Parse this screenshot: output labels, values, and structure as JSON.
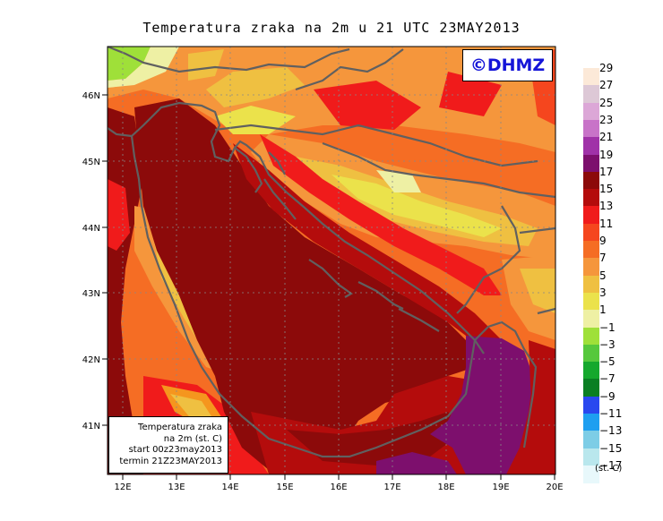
{
  "title": "Temperatura zraka na 2m u 21 UTC 23MAY2013",
  "logo": "©DHMZ",
  "info_box": [
    "Temperatura zraka",
    "na 2m (st. C)",
    "start 00z23may2013",
    "termin 21Z23MAY2013"
  ],
  "lat_labels": [
    "46N",
    "45N",
    "44N",
    "43N",
    "42N",
    "41N"
  ],
  "lon_labels": [
    "12E",
    "13E",
    "14E",
    "15E",
    "16E",
    "17E",
    "18E",
    "19E",
    "20E"
  ],
  "legend": {
    "unit": "(st. C)",
    "labels": [
      "29",
      "27",
      "25",
      "23",
      "21",
      "19",
      "17",
      "15",
      "13",
      "11",
      "9",
      "7",
      "5",
      "3",
      "1",
      "−1",
      "−3",
      "−5",
      "−7",
      "−9",
      "−11",
      "−13",
      "−15",
      "−17"
    ],
    "colors": [
      "#fce9d8",
      "#ddc8d6",
      "#dca7d7",
      "#c873c8",
      "#a032a8",
      "#7d0f6d",
      "#8c0a0a",
      "#b40c0c",
      "#f01b1b",
      "#f5461e",
      "#f56d24",
      "#f5963c",
      "#efc041",
      "#ebe24b",
      "#eef0a4",
      "#9fe039",
      "#56c83c",
      "#15a82d",
      "#0a7f23",
      "#2948ef",
      "#1e9ff0",
      "#7dcde6",
      "#b9e7ed",
      "#e8f8fb"
    ]
  }
}
